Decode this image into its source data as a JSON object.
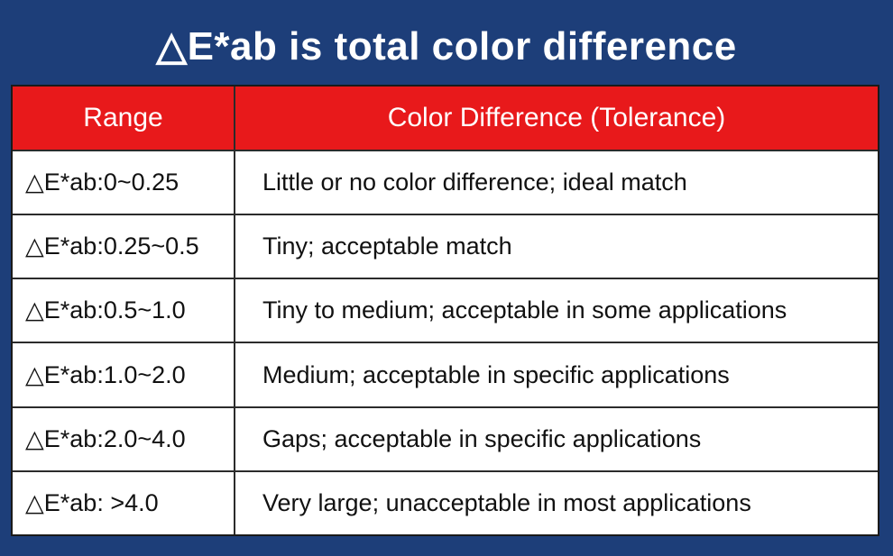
{
  "title": "△E*ab is total color difference",
  "table": {
    "headers": {
      "range": "Range",
      "tolerance": "Color Difference (Tolerance)"
    },
    "rows": [
      {
        "range": "△E*ab:0~0.25",
        "description": "Little or no color difference; ideal match"
      },
      {
        "range": "△E*ab:0.25~0.5",
        "description": "Tiny; acceptable match"
      },
      {
        "range": "△E*ab:0.5~1.0",
        "description": "Tiny to medium; acceptable in some applications"
      },
      {
        "range": "△E*ab:1.0~2.0",
        "description": "Medium; acceptable in specific applications"
      },
      {
        "range": "△E*ab:2.0~4.0",
        "description": "Gaps; acceptable in specific applications"
      },
      {
        "range": "△E*ab: >4.0",
        "description": "Very large; unacceptable in most applications"
      }
    ]
  },
  "colors": {
    "background": "#1d3e79",
    "header_background": "#e8191b",
    "header_text": "#ffffff",
    "cell_background": "#ffffff",
    "cell_text": "#111111"
  }
}
